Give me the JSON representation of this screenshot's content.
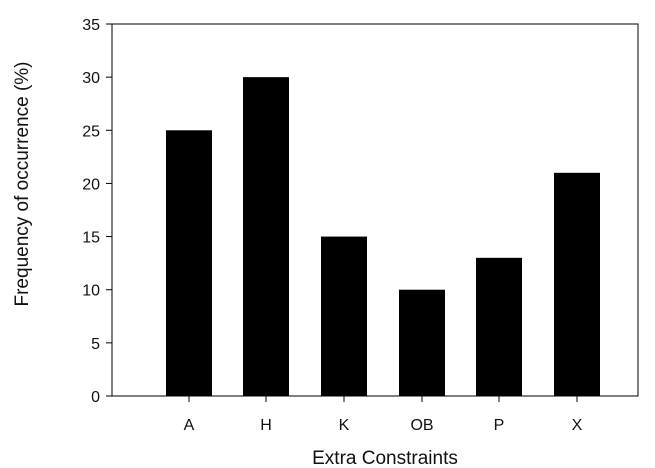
{
  "chart_data": {
    "type": "bar",
    "categories": [
      "A",
      "H",
      "K",
      "OB",
      "P",
      "X"
    ],
    "values": [
      25,
      30,
      15,
      10,
      13,
      21
    ],
    "xlabel": "Extra Constraints",
    "ylabel": "Frequency of occurrence (%)",
    "ylim": [
      0,
      35
    ],
    "yticks": [
      0,
      5,
      10,
      15,
      20,
      25,
      30,
      35
    ],
    "grid": false,
    "bar_color": "#000000"
  }
}
